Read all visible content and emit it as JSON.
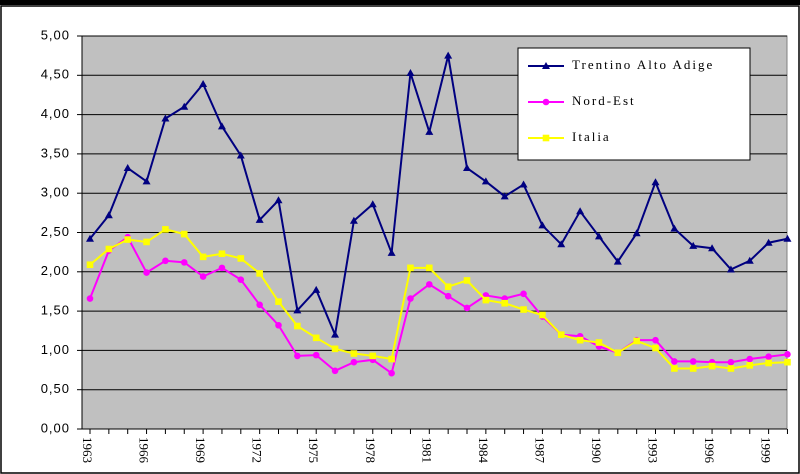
{
  "chart_data": {
    "type": "line",
    "categories": [
      "1963",
      null,
      null,
      "1966",
      null,
      null,
      "1969",
      null,
      null,
      "1972",
      null,
      null,
      "1975",
      null,
      null,
      "1978",
      null,
      null,
      "1981",
      null,
      null,
      "1984",
      null,
      null,
      "1987",
      null,
      null,
      "1990",
      null,
      null,
      "1993",
      null,
      null,
      "1996",
      null,
      null,
      "1999",
      null
    ],
    "series": [
      {
        "name": "Trentino Alto Adige",
        "color": "#000080",
        "marker": "triangle",
        "values": [
          2.42,
          2.72,
          3.32,
          3.15,
          3.95,
          4.1,
          4.39,
          3.85,
          3.48,
          2.66,
          2.91,
          1.51,
          1.77,
          1.2,
          2.65,
          2.86,
          2.24,
          4.53,
          3.78,
          4.75,
          3.32,
          3.15,
          2.96,
          3.11,
          2.59,
          2.35,
          2.77,
          2.45,
          2.13,
          2.49,
          3.14,
          2.55,
          2.33,
          2.3,
          2.03,
          2.14,
          2.37,
          2.42
        ]
      },
      {
        "name": "Nord-Est",
        "color": "#ff00ff",
        "marker": "circle",
        "values": [
          1.66,
          2.27,
          2.44,
          1.99,
          2.14,
          2.12,
          1.94,
          2.05,
          1.9,
          1.58,
          1.32,
          0.93,
          0.94,
          0.74,
          0.85,
          0.88,
          0.71,
          1.66,
          1.84,
          1.69,
          1.54,
          1.7,
          1.66,
          1.72,
          1.43,
          1.2,
          1.18,
          1.05,
          0.97,
          1.13,
          1.13,
          0.86,
          0.86,
          0.85,
          0.85,
          0.89,
          0.92,
          0.95
        ]
      },
      {
        "name": "Italia",
        "color": "#ffff00",
        "marker": "square",
        "values": [
          2.09,
          2.29,
          2.41,
          2.38,
          2.54,
          2.48,
          2.19,
          2.23,
          2.17,
          1.98,
          1.62,
          1.31,
          1.16,
          1.02,
          0.96,
          0.93,
          0.89,
          2.05,
          2.05,
          1.81,
          1.89,
          1.64,
          1.6,
          1.52,
          1.45,
          1.2,
          1.13,
          1.1,
          0.97,
          1.12,
          1.03,
          0.77,
          0.77,
          0.8,
          0.77,
          0.81,
          0.84,
          0.85
        ]
      }
    ],
    "ylim": [
      0,
      5
    ],
    "yticks": [
      {
        "value": 0,
        "label": "0,00"
      },
      {
        "value": 0.5,
        "label": "0,50"
      },
      {
        "value": 1,
        "label": "1,00"
      },
      {
        "value": 1.5,
        "label": "1,50"
      },
      {
        "value": 2,
        "label": "2,00"
      },
      {
        "value": 2.5,
        "label": "2,50"
      },
      {
        "value": 3,
        "label": "3,00"
      },
      {
        "value": 3.5,
        "label": "3,50"
      },
      {
        "value": 4,
        "label": "4,00"
      },
      {
        "value": 4.5,
        "label": "4,50"
      },
      {
        "value": 5,
        "label": "5,00"
      }
    ],
    "grid": true,
    "plot_background": "#c0c0c0",
    "legend": "top-right"
  }
}
